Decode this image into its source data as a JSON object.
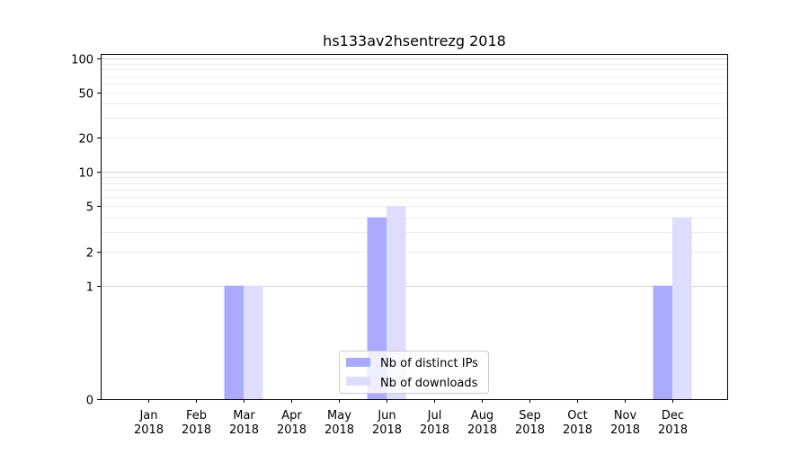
{
  "chart_data": {
    "type": "bar",
    "title": "hs133av2hsentrezg 2018",
    "xlabel": "",
    "ylabel": "",
    "categories": [
      [
        "Jan",
        "2018"
      ],
      [
        "Feb",
        "2018"
      ],
      [
        "Mar",
        "2018"
      ],
      [
        "Apr",
        "2018"
      ],
      [
        "May",
        "2018"
      ],
      [
        "Jun",
        "2018"
      ],
      [
        "Jul",
        "2018"
      ],
      [
        "Aug",
        "2018"
      ],
      [
        "Sep",
        "2018"
      ],
      [
        "Oct",
        "2018"
      ],
      [
        "Nov",
        "2018"
      ],
      [
        "Dec",
        "2018"
      ]
    ],
    "series": [
      {
        "name": "Nb of distinct IPs",
        "color": "#aaaaff",
        "values": [
          0,
          0,
          1,
          0,
          0,
          4,
          0,
          0,
          0,
          0,
          0,
          1
        ]
      },
      {
        "name": "Nb of downloads",
        "color": "#ddddff",
        "values": [
          0,
          0,
          1,
          0,
          0,
          5,
          0,
          0,
          0,
          0,
          0,
          4
        ]
      }
    ],
    "y_scale": "symlog",
    "ylim": [
      0,
      110
    ],
    "y_ticks": [
      "0",
      "1",
      "2",
      "5",
      "10",
      "20",
      "50",
      "100"
    ],
    "grid": true,
    "legend_position": "lower center"
  }
}
